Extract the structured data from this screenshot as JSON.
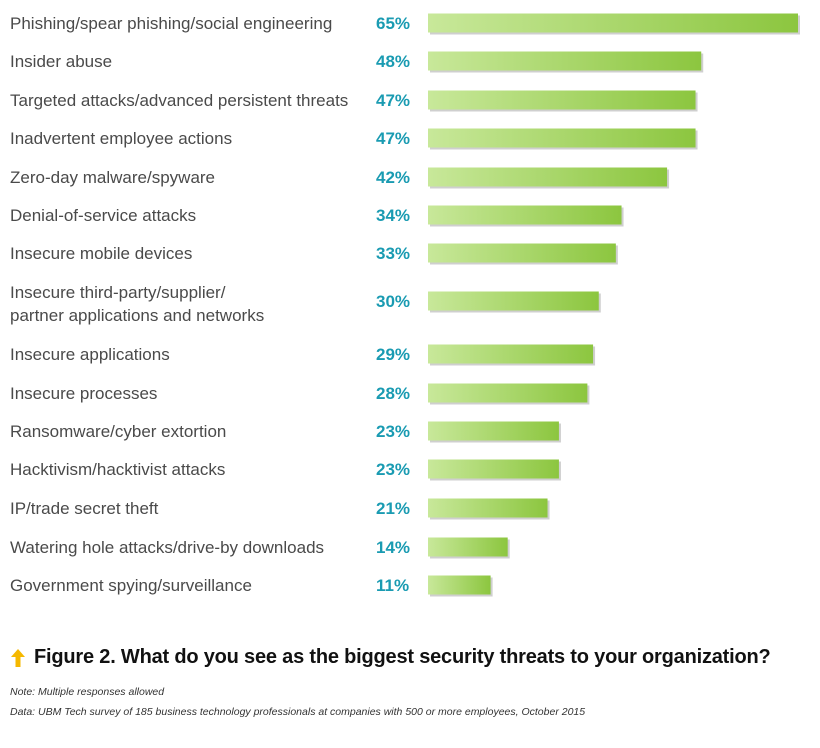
{
  "chart_data": {
    "type": "bar",
    "orientation": "horizontal",
    "categories": [
      "Phishing/spear phishing/social engineering",
      "Insider abuse",
      "Targeted attacks/advanced persistent threats",
      "Inadvertent employee actions",
      "Zero-day malware/spyware",
      "Denial-of-service attacks",
      "Insecure mobile devices",
      "Insecure third-party/supplier/\npartner applications and networks",
      "Insecure applications",
      "Insecure processes",
      "Ransomware/cyber extortion",
      "Hacktivism/hacktivist attacks",
      "IP/trade secret theft",
      "Watering hole attacks/drive-by downloads",
      "Government spying/surveillance"
    ],
    "values": [
      65,
      48,
      47,
      47,
      42,
      34,
      33,
      30,
      29,
      28,
      23,
      23,
      21,
      14,
      11
    ],
    "value_labels": [
      "65%",
      "48%",
      "47%",
      "47%",
      "42%",
      "34%",
      "33%",
      "30%",
      "29%",
      "28%",
      "23%",
      "23%",
      "21%",
      "14%",
      "11%"
    ],
    "unit": "%",
    "xlim": [
      0,
      65
    ],
    "grid": false,
    "title": "Figure 2. What do you see as the biggest security threats to your organization?",
    "xlabel": "",
    "ylabel": ""
  },
  "notes": {
    "note": "Note: Multiple responses allowed",
    "data": "Data: UBM Tech survey of 185 business technology professionals at companies with 500 or more employees, October 2015"
  },
  "colors": {
    "bar_start": "#c8e89a",
    "bar_end": "#8cc63f",
    "value_text": "#1a9bb2",
    "arrow": "#f5b800"
  },
  "icons": {
    "caption": "up-arrow-icon"
  }
}
